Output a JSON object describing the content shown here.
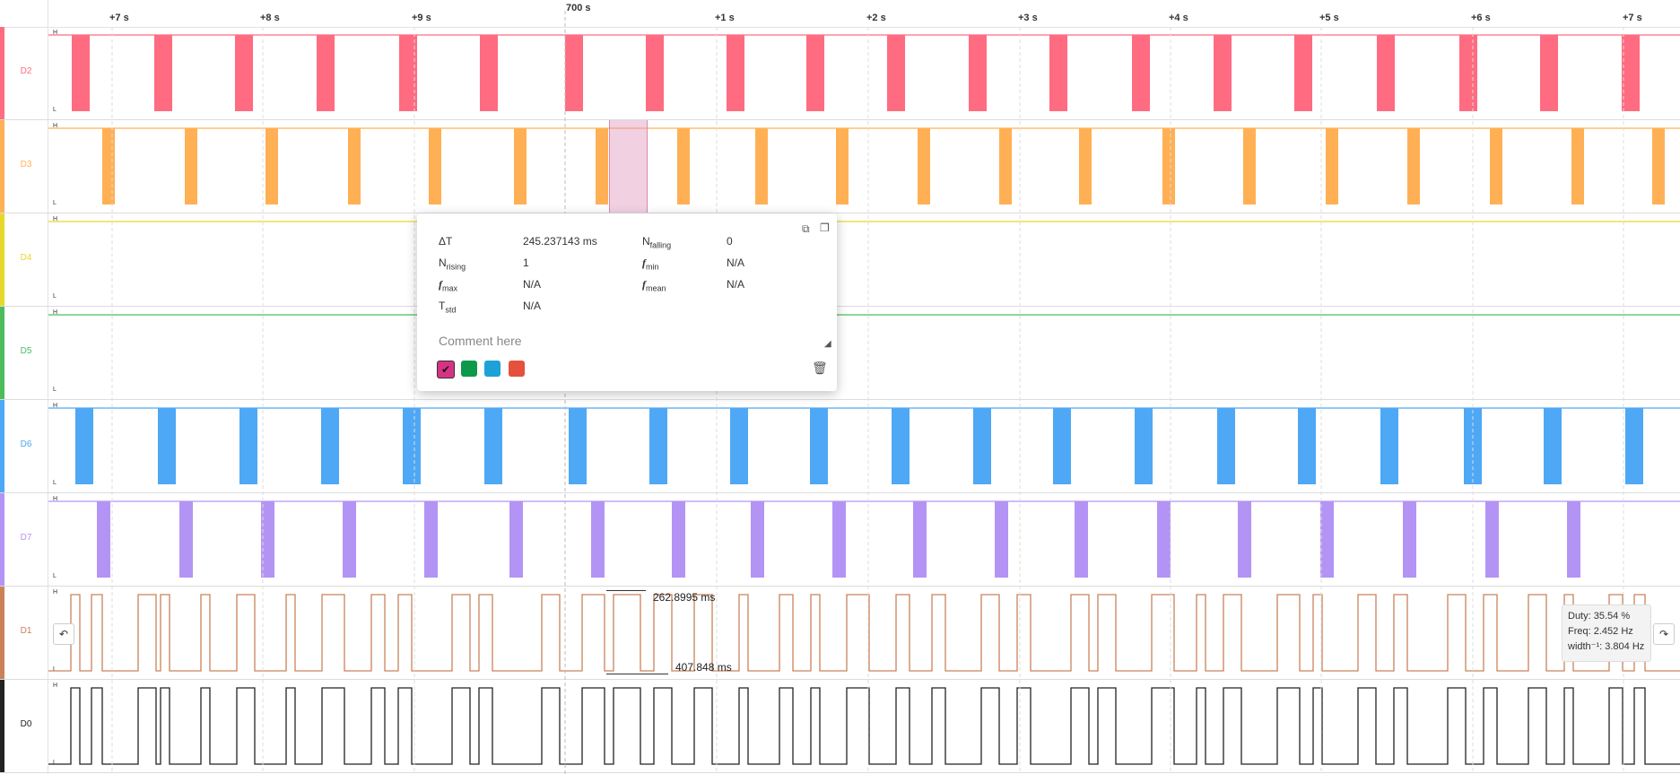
{
  "ruler": {
    "center_label": "700 s",
    "ticks": [
      "+7 s",
      "+8 s",
      "+9 s",
      "+1 s",
      "+2 s",
      "+3 s",
      "+4 s",
      "+5 s",
      "+6 s",
      "+7 s"
    ]
  },
  "level_labels": {
    "high": "H",
    "low": "L"
  },
  "channels": [
    {
      "name": "D2",
      "color": "#ff6b81",
      "kind": "pulse"
    },
    {
      "name": "D3",
      "color": "#ffb055",
      "kind": "pulse"
    },
    {
      "name": "D4",
      "color": "#e6d82a",
      "kind": "flat"
    },
    {
      "name": "D5",
      "color": "#4cbc5c",
      "kind": "flat"
    },
    {
      "name": "D6",
      "color": "#4ea8f5",
      "kind": "pulse"
    },
    {
      "name": "D7",
      "color": "#b394f5",
      "kind": "pulse"
    },
    {
      "name": "D1",
      "color": "#c9825a",
      "kind": "wave"
    },
    {
      "name": "D0",
      "color": "#222222",
      "kind": "wave"
    }
  ],
  "measure_popup": {
    "rows": [
      {
        "k": "ΔT",
        "v": "245.237143 ms",
        "k2": "N",
        "k2sub": "falling",
        "v2": "0"
      },
      {
        "k": "N",
        "ksub": "rising",
        "v": "1",
        "k2f": "f",
        "k2sub": "min",
        "v2": "N/A"
      },
      {
        "kf": "f",
        "ksub": "max",
        "v": "N/A",
        "k2f": "f",
        "k2sub": "mean",
        "v2": "N/A"
      },
      {
        "k": "T",
        "ksub": "std",
        "v": "N/A"
      }
    ],
    "comment_placeholder": "Comment here",
    "swatches": [
      "#d63384",
      "#0c9a4a",
      "#1ea1d6",
      "#e4513c"
    ],
    "icons": {
      "expand": "expand-icon",
      "copy": "copy-icon",
      "delete": "trash-icon",
      "resize": "resize-icon",
      "check": "check-icon"
    }
  },
  "measurements": {
    "top": "262.8995 ms",
    "bottom": "407.848 ms"
  },
  "tooltip": {
    "duty": "Duty: 35.54 %",
    "freq": "Freq: 2.452 Hz",
    "width": "width⁻¹: 3.804 Hz"
  },
  "nav": {
    "prev_icon": "prev-edge-icon",
    "next_icon": "next-edge-icon",
    "prev": "↶",
    "next": "↷"
  }
}
